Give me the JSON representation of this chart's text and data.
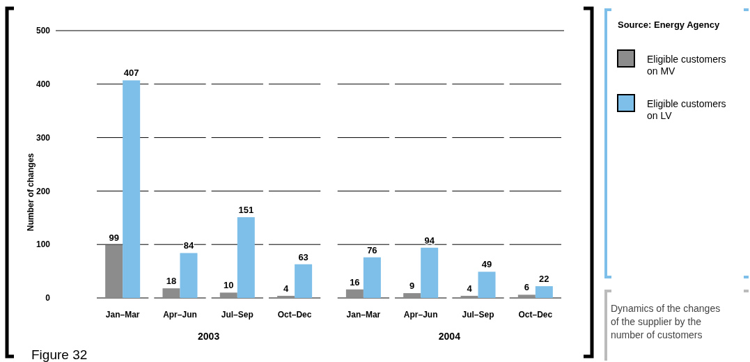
{
  "chart_data": {
    "type": "bar",
    "title": "Dynamics of the changes of the supplier by the number of customers",
    "ylabel": "Number of changes",
    "categories": [
      "Jan–Mar",
      "Apr–Jun",
      "Jul–Sep",
      "Oct–Dec",
      "Jan–Mar",
      "Apr–Jun",
      "Jul–Sep",
      "Oct–Dec"
    ],
    "series": [
      {
        "name": "Eligible customers on MV",
        "color": "#8c8c8c",
        "values": [
          99,
          18,
          10,
          4,
          16,
          9,
          4,
          6
        ]
      },
      {
        "name": "Eligible customers on LV",
        "color": "#7dbfe8",
        "values": [
          407,
          84,
          151,
          63,
          76,
          94,
          49,
          22
        ]
      }
    ],
    "ylim": [
      0,
      500
    ],
    "yticks": [
      0,
      100,
      200,
      300,
      400,
      500
    ],
    "grid": "y",
    "legend": "right",
    "data_labels": true,
    "annotations": [
      "2003",
      "2004",
      "Source: Energy Agency",
      "Figure 32"
    ]
  }
}
